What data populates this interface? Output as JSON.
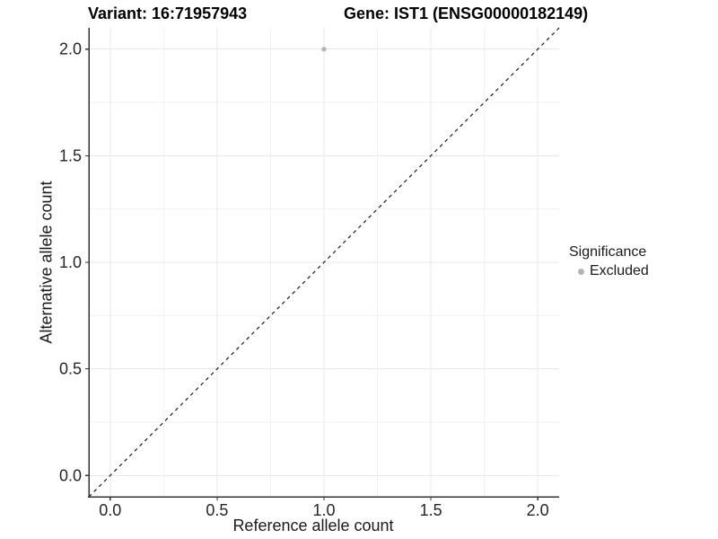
{
  "chart_data": {
    "type": "scatter",
    "title_left": "Variant: 16:71957943",
    "title_right": "Gene: IST1 (ENSG00000182149)",
    "xlabel": "Reference allele count",
    "ylabel": "Alternative allele count",
    "xlim": [
      -0.1,
      2.1
    ],
    "ylim": [
      -0.1,
      2.1
    ],
    "xticks": [
      0.0,
      0.5,
      1.0,
      1.5,
      2.0
    ],
    "yticks": [
      0.0,
      0.5,
      1.0,
      1.5,
      2.0
    ],
    "minor_xticks": [
      0.25,
      0.75,
      1.25,
      1.75
    ],
    "minor_yticks": [
      0.25,
      0.75,
      1.25,
      1.75
    ],
    "tick_format_decimals": 1,
    "grid": "major-and-minor",
    "points": [
      {
        "x": 1.0,
        "y": 2.0,
        "series": "Excluded"
      }
    ],
    "identity_line": {
      "slope": 1,
      "intercept": 0,
      "style": "dashed"
    },
    "legend": {
      "title": "Significance",
      "position": "right",
      "entries": [
        {
          "label": "Excluded",
          "color": "#b4b4b4"
        }
      ]
    },
    "colors": {
      "point": "#b4b4b4",
      "grid_major": "#e8e8e8",
      "grid_minor": "#f2f2f2",
      "axis": "#333333",
      "tick_label": "#262626",
      "dashed_line": "#1a1a1a",
      "background": "#ffffff"
    }
  }
}
